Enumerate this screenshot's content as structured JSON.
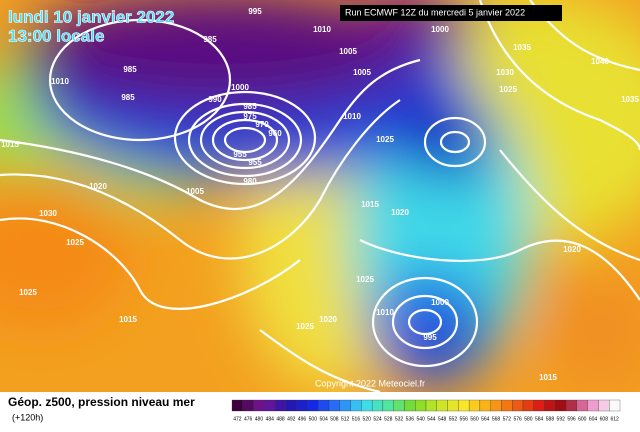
{
  "header": {
    "date": "lundi 10 janvier 2022",
    "time": "13:00 locale",
    "run": "Run ECMWF 12Z du mercredi 5 janvier 2022"
  },
  "map": {
    "copyright": "Copyright 2022 Meteociel.fr",
    "isobar_labels": [
      "995",
      "1010",
      "1000",
      "985",
      "1010",
      "985",
      "985",
      "1005",
      "1005",
      "1035",
      "1030",
      "1040",
      "1035",
      "1000",
      "990",
      "985",
      "975",
      "970",
      "960",
      "955",
      "955",
      "980",
      "1010",
      "1025",
      "1025",
      "1015",
      "1020",
      "1005",
      "1015",
      "1020",
      "1030",
      "1025",
      "1025",
      "1020",
      "1025",
      "1015",
      "1025",
      "1020",
      "1010",
      "1000",
      "995",
      "1015"
    ]
  },
  "footer": {
    "caption": "Géop. z500, pression niveau mer",
    "lead": "(+120h)",
    "scale_labels": [
      "472",
      "476",
      "480",
      "484",
      "488",
      "492",
      "496",
      "500",
      "504",
      "508",
      "512",
      "516",
      "520",
      "524",
      "528",
      "532",
      "536",
      "540",
      "544",
      "548",
      "552",
      "556",
      "560",
      "564",
      "568",
      "572",
      "576",
      "580",
      "584",
      "588",
      "592",
      "596",
      "600",
      "604",
      "608",
      "612"
    ]
  }
}
